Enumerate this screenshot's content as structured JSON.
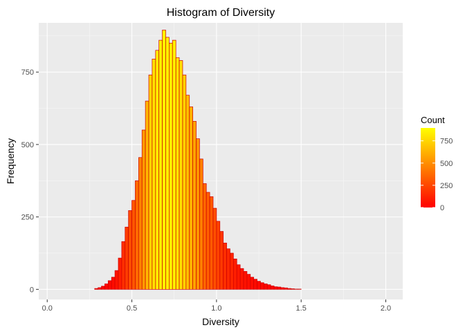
{
  "chart_data": {
    "type": "bar",
    "title": "Histogram of Diversity",
    "xlabel": "Diversity",
    "ylabel": "Frequency",
    "xlim": [
      -0.05,
      2.1
    ],
    "ylim": [
      -35,
      920
    ],
    "x_ticks": [
      0.0,
      0.5,
      1.0,
      1.5,
      2.0
    ],
    "x_tick_labels": [
      "0.0",
      "0.5",
      "1.0",
      "1.5",
      "2.0"
    ],
    "y_ticks": [
      0,
      250,
      500,
      750
    ],
    "y_tick_labels": [
      "0",
      "250",
      "500",
      "750"
    ],
    "grid": true,
    "bin_width": 0.02,
    "x": [
      0.01,
      0.03,
      0.05,
      0.07,
      0.09,
      0.11,
      0.13,
      0.15,
      0.17,
      0.19,
      0.21,
      0.23,
      0.25,
      0.27,
      0.29,
      0.31,
      0.33,
      0.35,
      0.37,
      0.39,
      0.41,
      0.43,
      0.45,
      0.47,
      0.49,
      0.51,
      0.53,
      0.55,
      0.57,
      0.59,
      0.61,
      0.63,
      0.65,
      0.67,
      0.69,
      0.71,
      0.73,
      0.75,
      0.77,
      0.79,
      0.81,
      0.83,
      0.85,
      0.87,
      0.89,
      0.91,
      0.93,
      0.95,
      0.97,
      0.99,
      1.01,
      1.03,
      1.05,
      1.07,
      1.09,
      1.11,
      1.13,
      1.15,
      1.17,
      1.19,
      1.21,
      1.23,
      1.25,
      1.27,
      1.29,
      1.31,
      1.33,
      1.35,
      1.37,
      1.39,
      1.41,
      1.43,
      1.45,
      1.47,
      1.49,
      1.51,
      1.53,
      1.55,
      1.57,
      1.59,
      1.61,
      1.63,
      1.65,
      1.67,
      1.69,
      1.71,
      1.73,
      1.75,
      1.77,
      1.79,
      1.81,
      1.83,
      1.85,
      1.87,
      1.89,
      1.91,
      1.93,
      1.95,
      1.97,
      1.99
    ],
    "values": [
      0,
      0,
      0,
      0,
      0,
      0,
      0,
      0,
      0,
      0,
      0,
      0,
      0,
      0,
      3,
      6,
      11,
      19,
      30,
      42,
      65,
      108,
      165,
      215,
      272,
      307,
      375,
      455,
      550,
      650,
      740,
      795,
      825,
      860,
      895,
      870,
      850,
      860,
      800,
      790,
      740,
      670,
      630,
      580,
      520,
      450,
      365,
      335,
      320,
      280,
      235,
      200,
      160,
      140,
      125,
      105,
      85,
      72,
      62,
      52,
      42,
      35,
      28,
      23,
      19,
      16,
      12,
      9,
      8,
      6,
      5,
      3,
      2,
      1,
      1,
      0,
      0,
      0,
      0,
      0,
      0,
      0,
      0,
      0,
      0,
      0,
      0,
      0,
      0,
      0,
      0,
      0,
      0,
      0,
      0,
      0,
      0,
      0,
      0,
      0
    ],
    "legend": {
      "title": "Count",
      "position": "right",
      "ticks": [
        0,
        250,
        500,
        750
      ],
      "tick_labels": [
        "0",
        "250",
        "500",
        "750"
      ],
      "range": [
        0,
        895
      ]
    },
    "colors": {
      "low": "#ff0000",
      "high": "#ffff00",
      "bar_outline": "#cc0000",
      "panel_background": "#ebebeb",
      "grid_major": "#ffffff"
    }
  }
}
